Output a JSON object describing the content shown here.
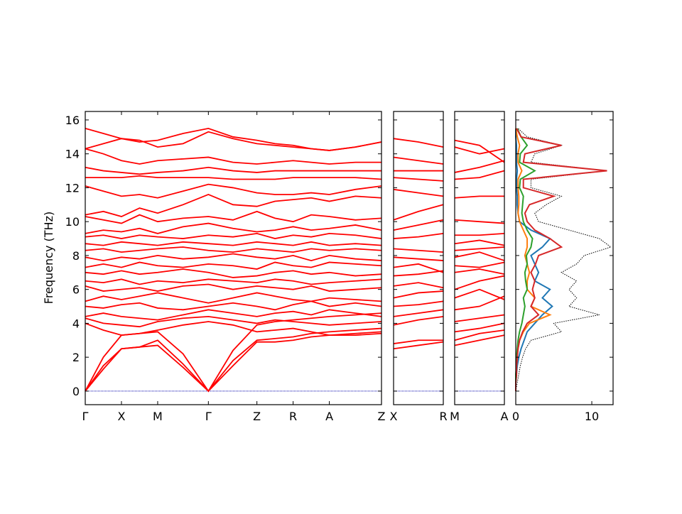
{
  "chart_data": [
    {
      "type": "line",
      "ylabel": "Frequency (THz)",
      "color": "#ff0000",
      "ylim": [
        -0.8,
        16.5
      ],
      "yticks": [
        0,
        2,
        4,
        6,
        8,
        10,
        12,
        14,
        16
      ],
      "hline": 0,
      "hline_color": "#0000aa",
      "xlim": [
        0,
        4.09
      ],
      "xticks": [
        {
          "value": 0,
          "label": "Γ"
        },
        {
          "value": 0.5,
          "label": "X"
        },
        {
          "value": 1.0,
          "label": "M"
        },
        {
          "value": 1.7,
          "label": "Γ"
        },
        {
          "value": 2.37,
          "label": "Z"
        },
        {
          "value": 2.87,
          "label": "R"
        },
        {
          "value": 3.37,
          "label": "A"
        },
        {
          "value": 4.09,
          "label": "Z"
        }
      ],
      "x": [
        0,
        0.25,
        0.5,
        0.75,
        1.0,
        1.35,
        1.7,
        2.04,
        2.37,
        2.62,
        2.87,
        3.12,
        3.37,
        3.73,
        4.09
      ],
      "series": [
        {
          "values": [
            0,
            1.3,
            2.5,
            2.6,
            2.7,
            1.4,
            0,
            1.5,
            2.9,
            2.9,
            3.0,
            3.2,
            3.3,
            3.3,
            3.4
          ]
        },
        {
          "values": [
            0,
            1.5,
            2.5,
            2.6,
            3.0,
            1.6,
            0,
            1.8,
            3.0,
            3.1,
            3.2,
            3.4,
            3.5,
            3.6,
            3.7
          ]
        },
        {
          "values": [
            0,
            2.0,
            3.3,
            3.4,
            3.5,
            2.2,
            0,
            2.4,
            3.9,
            4.1,
            4.2,
            4.3,
            4.4,
            4.5,
            4.6
          ]
        },
        {
          "values": [
            4.0,
            3.6,
            3.3,
            3.4,
            3.6,
            3.9,
            4.1,
            3.9,
            3.5,
            3.6,
            3.7,
            3.5,
            3.3,
            3.4,
            3.5
          ]
        },
        {
          "values": [
            4.3,
            4.0,
            3.9,
            3.8,
            4.1,
            4.3,
            4.4,
            4.2,
            4.0,
            4.2,
            4.1,
            4.0,
            3.9,
            4.0,
            4.1
          ]
        },
        {
          "values": [
            4.4,
            4.6,
            4.4,
            4.3,
            4.2,
            4.5,
            4.8,
            4.6,
            4.4,
            4.6,
            4.7,
            4.5,
            4.8,
            4.6,
            4.4
          ]
        },
        {
          "values": [
            5.0,
            4.9,
            5.1,
            5.2,
            4.9,
            4.8,
            5.0,
            5.2,
            5.0,
            4.8,
            5.1,
            5.3,
            5.0,
            5.2,
            5.0
          ]
        },
        {
          "values": [
            5.3,
            5.6,
            5.4,
            5.6,
            5.8,
            5.5,
            5.2,
            5.5,
            5.8,
            5.6,
            5.4,
            5.3,
            5.5,
            5.4,
            5.3
          ]
        },
        {
          "values": [
            6.2,
            5.9,
            6.0,
            6.1,
            5.9,
            6.2,
            6.3,
            6.0,
            6.2,
            6.1,
            6.0,
            6.2,
            5.9,
            6.0,
            6.1
          ]
        },
        {
          "values": [
            6.5,
            6.4,
            6.6,
            6.3,
            6.5,
            6.4,
            6.6,
            6.5,
            6.4,
            6.6,
            6.5,
            6.3,
            6.4,
            6.5,
            6.6
          ]
        },
        {
          "values": [
            7.0,
            6.9,
            7.1,
            6.9,
            7.0,
            7.2,
            7.0,
            6.7,
            6.8,
            7.0,
            7.1,
            6.9,
            7.0,
            6.8,
            6.9
          ]
        },
        {
          "values": [
            7.3,
            7.5,
            7.3,
            7.6,
            7.4,
            7.3,
            7.5,
            7.4,
            7.2,
            7.6,
            7.4,
            7.3,
            7.6,
            7.5,
            7.4
          ]
        },
        {
          "values": [
            7.9,
            7.7,
            7.9,
            7.8,
            8.0,
            7.8,
            7.9,
            8.1,
            7.9,
            7.8,
            8.0,
            7.7,
            8.0,
            7.8,
            7.7
          ]
        },
        {
          "values": [
            8.3,
            8.4,
            8.2,
            8.3,
            8.4,
            8.5,
            8.3,
            8.2,
            8.4,
            8.3,
            8.2,
            8.4,
            8.3,
            8.4,
            8.3
          ]
        },
        {
          "values": [
            8.7,
            8.6,
            8.8,
            8.7,
            8.6,
            8.8,
            8.7,
            8.6,
            8.8,
            8.7,
            8.6,
            8.8,
            8.6,
            8.7,
            8.6
          ]
        },
        {
          "values": [
            9.1,
            9.2,
            9.0,
            9.2,
            9.1,
            9.0,
            9.2,
            9.1,
            9.3,
            9.0,
            9.2,
            9.1,
            9.3,
            9.2,
            9.0
          ]
        },
        {
          "values": [
            9.3,
            9.5,
            9.4,
            9.6,
            9.3,
            9.7,
            9.9,
            9.6,
            9.4,
            9.5,
            9.7,
            9.5,
            9.6,
            9.8,
            9.5
          ]
        },
        {
          "values": [
            10.3,
            10.1,
            9.9,
            10.4,
            10.0,
            10.2,
            10.3,
            10.1,
            10.6,
            10.2,
            10.0,
            10.4,
            10.3,
            10.1,
            10.2
          ]
        },
        {
          "values": [
            10.4,
            10.6,
            10.3,
            10.8,
            10.5,
            11.0,
            11.6,
            11.0,
            10.9,
            11.2,
            11.3,
            11.4,
            11.2,
            11.5,
            11.4
          ]
        },
        {
          "values": [
            12.1,
            11.8,
            11.5,
            11.6,
            11.4,
            11.8,
            12.2,
            12.0,
            11.7,
            11.6,
            11.6,
            11.7,
            11.6,
            11.9,
            12.1
          ]
        },
        {
          "values": [
            12.6,
            12.6,
            12.6,
            12.7,
            12.6,
            12.6,
            12.6,
            12.5,
            12.5,
            12.5,
            12.6,
            12.6,
            12.6,
            12.6,
            12.5
          ]
        },
        {
          "values": [
            13.2,
            13.0,
            12.9,
            12.8,
            12.9,
            13.0,
            13.2,
            13.0,
            12.9,
            13.0,
            13.0,
            13.0,
            13.0,
            13.0,
            13.0
          ]
        },
        {
          "values": [
            14.3,
            14.0,
            13.6,
            13.4,
            13.6,
            13.7,
            13.8,
            13.5,
            13.4,
            13.5,
            13.6,
            13.5,
            13.4,
            13.5,
            13.5
          ]
        },
        {
          "values": [
            14.3,
            14.6,
            14.9,
            14.8,
            14.4,
            14.6,
            15.3,
            14.9,
            14.6,
            14.5,
            14.4,
            14.3,
            14.2,
            14.4,
            14.7
          ]
        },
        {
          "values": [
            15.5,
            15.2,
            14.9,
            14.7,
            14.8,
            15.2,
            15.5,
            15.0,
            14.8,
            14.6,
            14.5,
            14.3,
            14.2,
            14.4,
            14.7
          ]
        }
      ]
    },
    {
      "type": "line",
      "color": "#ff0000",
      "xlim": [
        0,
        1
      ],
      "xticks": [
        {
          "value": 0,
          "label": "X"
        },
        {
          "value": 1,
          "label": "R"
        }
      ],
      "x": [
        0,
        0.5,
        1
      ],
      "series": [
        {
          "values": [
            2.5,
            2.7,
            2.9
          ]
        },
        {
          "values": [
            2.8,
            3.0,
            3.0
          ]
        },
        {
          "values": [
            3.9,
            4.2,
            4.4
          ]
        },
        {
          "values": [
            4.4,
            4.6,
            4.8
          ]
        },
        {
          "values": [
            5.0,
            5.1,
            5.3
          ]
        },
        {
          "values": [
            5.5,
            5.8,
            5.9
          ]
        },
        {
          "values": [
            6.2,
            6.4,
            6.1
          ]
        },
        {
          "values": [
            6.8,
            6.9,
            7.1
          ]
        },
        {
          "values": [
            7.3,
            7.5,
            7.0
          ]
        },
        {
          "values": [
            7.9,
            7.8,
            7.7
          ]
        },
        {
          "values": [
            8.4,
            8.3,
            8.2
          ]
        },
        {
          "values": [
            9.0,
            9.1,
            9.3
          ]
        },
        {
          "values": [
            9.5,
            9.8,
            10.1
          ]
        },
        {
          "values": [
            10.1,
            10.6,
            11.0
          ]
        },
        {
          "values": [
            11.9,
            11.7,
            11.5
          ]
        },
        {
          "values": [
            12.6,
            12.5,
            12.4
          ]
        },
        {
          "values": [
            13.0,
            13.0,
            13.0
          ]
        },
        {
          "values": [
            13.8,
            13.6,
            13.4
          ]
        },
        {
          "values": [
            14.9,
            14.7,
            14.4
          ]
        }
      ]
    },
    {
      "type": "line",
      "color": "#ff0000",
      "xlim": [
        0,
        1
      ],
      "xticks": [
        {
          "value": 0,
          "label": "M"
        },
        {
          "value": 1,
          "label": "A"
        }
      ],
      "x": [
        0,
        0.5,
        1
      ],
      "series": [
        {
          "values": [
            2.7,
            3.0,
            3.3
          ]
        },
        {
          "values": [
            3.0,
            3.4,
            3.6
          ]
        },
        {
          "values": [
            3.5,
            3.7,
            4.0
          ]
        },
        {
          "values": [
            4.1,
            4.3,
            4.5
          ]
        },
        {
          "values": [
            4.8,
            5.0,
            5.6
          ]
        },
        {
          "values": [
            5.5,
            6.0,
            5.4
          ]
        },
        {
          "values": [
            6.0,
            6.5,
            6.8
          ]
        },
        {
          "values": [
            7.0,
            7.2,
            6.9
          ]
        },
        {
          "values": [
            7.4,
            7.3,
            7.6
          ]
        },
        {
          "values": [
            7.9,
            8.2,
            7.7
          ]
        },
        {
          "values": [
            8.3,
            8.4,
            8.5
          ]
        },
        {
          "values": [
            8.7,
            8.9,
            8.6
          ]
        },
        {
          "values": [
            9.2,
            9.2,
            9.3
          ]
        },
        {
          "values": [
            10.1,
            10.0,
            9.9
          ]
        },
        {
          "values": [
            11.4,
            11.5,
            11.5
          ]
        },
        {
          "values": [
            12.5,
            12.6,
            13.0
          ]
        },
        {
          "values": [
            12.9,
            13.2,
            13.6
          ]
        },
        {
          "values": [
            14.4,
            14.0,
            14.3
          ]
        },
        {
          "values": [
            14.8,
            14.5,
            13.5
          ]
        }
      ]
    },
    {
      "type": "dos",
      "orientation": "horizontal",
      "xlim": [
        0,
        12.8
      ],
      "xticks": [
        0,
        10
      ],
      "y": [
        0,
        0.5,
        1,
        1.5,
        2,
        2.5,
        3,
        3.5,
        4,
        4.5,
        5,
        5.5,
        6,
        6.5,
        7,
        7.5,
        8,
        8.5,
        9,
        9.5,
        10,
        10.5,
        11,
        11.5,
        12,
        12.5,
        13,
        13.5,
        14,
        14.5,
        15,
        15.5
      ],
      "series": [
        {
          "color": "#000000",
          "style": "dotted",
          "values": [
            0,
            0.2,
            0.4,
            0.6,
            0.9,
            1.3,
            2,
            6,
            5,
            11,
            7,
            8,
            7,
            8,
            6,
            8,
            9,
            12.5,
            11,
            7,
            3,
            2.5,
            4,
            6,
            2,
            2,
            12,
            2,
            2.5,
            6,
            1.5,
            0.3
          ]
        },
        {
          "color": "#1f77b4",
          "values": [
            0,
            0,
            0.1,
            0.2,
            0.4,
            0.7,
            1.1,
            1.5,
            2.5,
            3.5,
            4.8,
            3.5,
            4.5,
            2.5,
            3,
            2.5,
            2,
            3.5,
            4.5,
            2,
            0.5,
            0.3,
            0.2,
            0.2,
            0.1,
            0.1,
            0.2,
            0.1,
            0.1,
            0.1,
            0,
            0
          ]
        },
        {
          "color": "#ff7f0e",
          "values": [
            0,
            0,
            0.1,
            0.1,
            0.2,
            0.3,
            0.5,
            1,
            1.8,
            4.5,
            2,
            2.5,
            1.5,
            1.5,
            1.8,
            1.5,
            1.2,
            1.5,
            1.5,
            1,
            0.5,
            0.3,
            0.4,
            0.4,
            0.3,
            0.3,
            0.8,
            0.3,
            0.3,
            0.5,
            0.2,
            0
          ]
        },
        {
          "color": "#2ca02c",
          "values": [
            0,
            0,
            0,
            0.1,
            0.1,
            0.2,
            0.3,
            0.5,
            0.8,
            1,
            1.2,
            1,
            1.5,
            1.3,
            1.2,
            1.5,
            1.4,
            2,
            2.2,
            1.5,
            1,
            0.8,
            0.9,
            1,
            0.5,
            0.6,
            2.5,
            0.5,
            0.6,
            1.5,
            0.7,
            0.2
          ]
        },
        {
          "color": "#d62728",
          "values": [
            0,
            0,
            0.1,
            0.1,
            0.2,
            0.3,
            0.5,
            0.9,
            1.5,
            3,
            2,
            2.5,
            2.2,
            2.5,
            2,
            2.6,
            3,
            6,
            4.5,
            2.5,
            1.5,
            1.2,
            1.8,
            5,
            1,
            1,
            12,
            1,
            1.2,
            6,
            0.7,
            0.1
          ]
        }
      ]
    }
  ]
}
